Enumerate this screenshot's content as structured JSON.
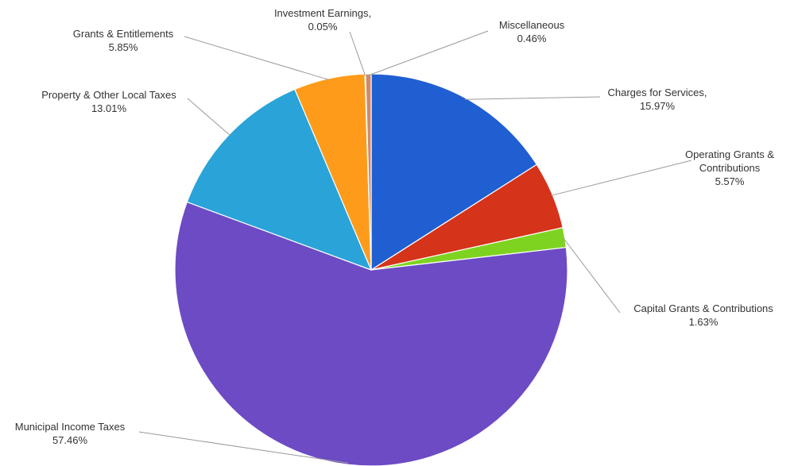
{
  "chart_data": {
    "type": "pie",
    "title": "",
    "slices": [
      {
        "label": "Charges for Services,",
        "pct_label": "15.97%",
        "value": 15.97,
        "color": "#1f5fd1"
      },
      {
        "label": "Operating Grants & Contributions",
        "pct_label": "5.57%",
        "value": 5.57,
        "color": "#d5331a"
      },
      {
        "label": "Capital Grants & Contributions",
        "pct_label": "1.63%",
        "value": 1.63,
        "color": "#7ed321"
      },
      {
        "label": "Municipal Income Taxes",
        "pct_label": "57.46%",
        "value": 57.46,
        "color": "#6c4bc4"
      },
      {
        "label": "Property & Other Local Taxes",
        "pct_label": "13.01%",
        "value": 13.01,
        "color": "#2aa3d9"
      },
      {
        "label": "Grants & Entitlements",
        "pct_label": "5.85%",
        "value": 5.85,
        "color": "#ff9b1a"
      },
      {
        "label": "Investment Earnings,",
        "pct_label": "0.05%",
        "value": 0.05,
        "color": "#9aa33a"
      },
      {
        "label": "Miscellaneous",
        "pct_label": "0.46%",
        "value": 0.46,
        "color": "#d08a6a"
      }
    ]
  }
}
